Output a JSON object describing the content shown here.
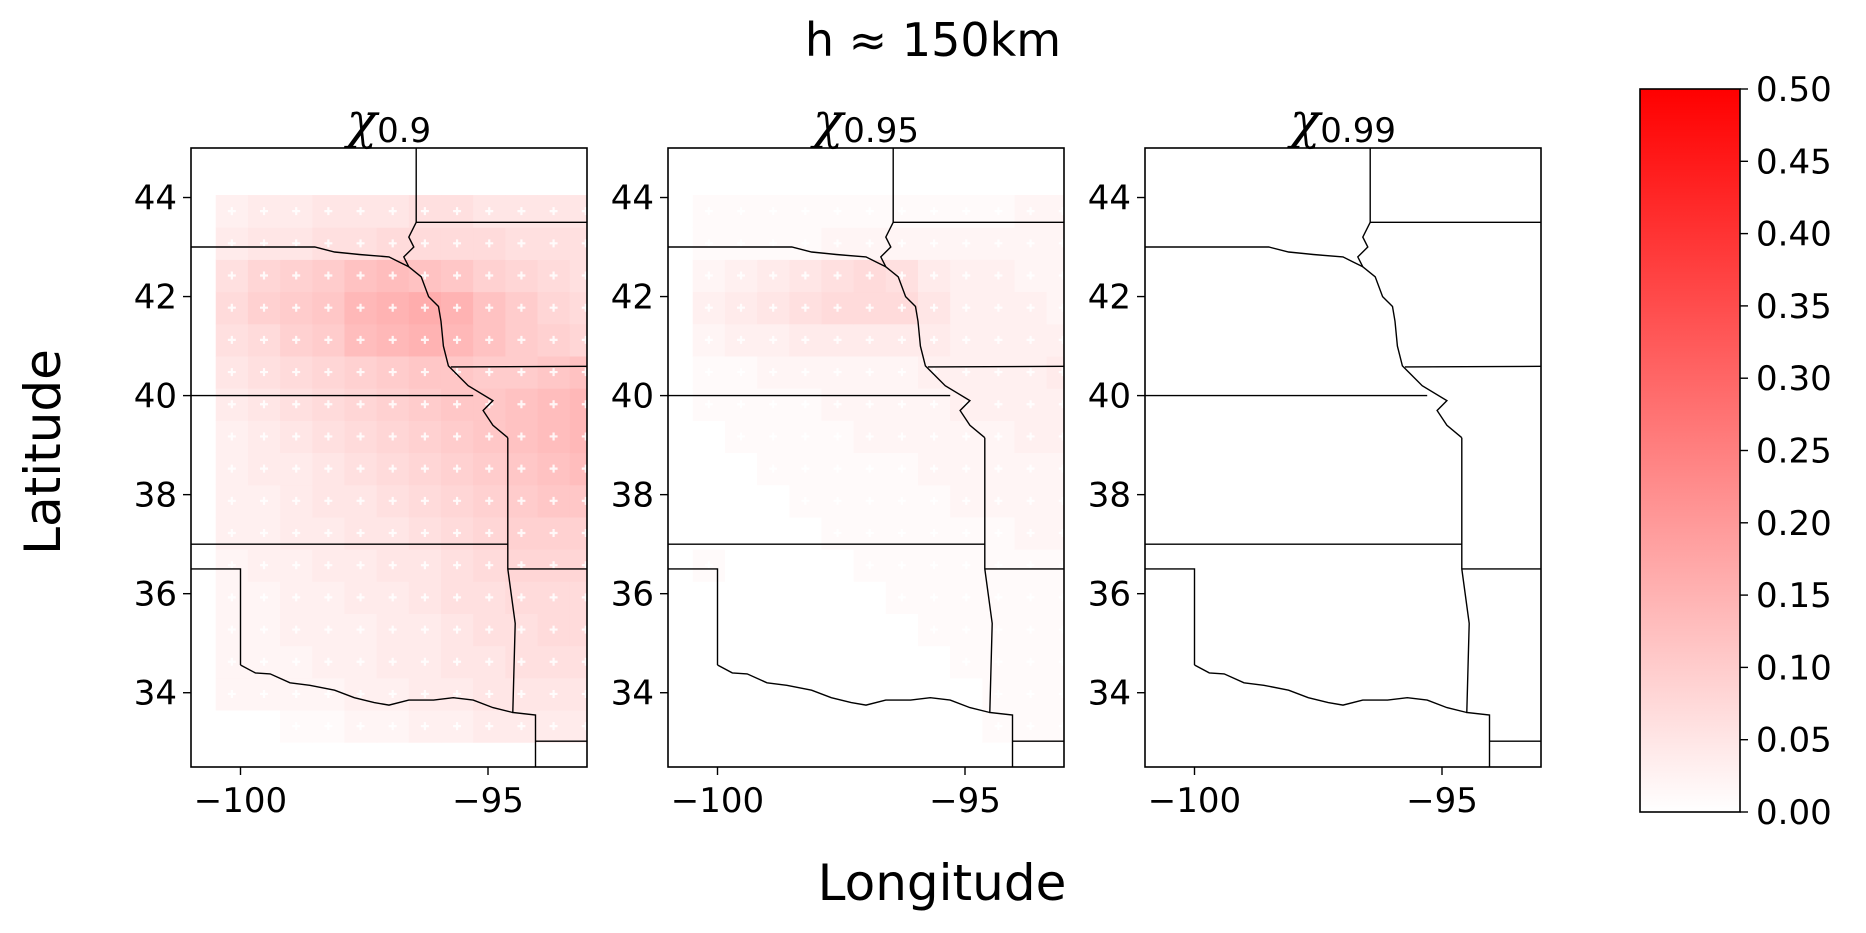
{
  "figure": {
    "suptitle": "h ≈ 150km",
    "xlabel": "Longitude",
    "ylabel": "Latitude"
  },
  "chart_data": {
    "type": "heatmap",
    "x_range": [
      -101,
      -93
    ],
    "y_range": [
      32.5,
      45
    ],
    "x_ticks": [
      -100,
      -95
    ],
    "x_tick_labels": [
      "−100",
      "−95"
    ],
    "y_ticks": [
      34,
      36,
      38,
      40,
      42,
      44
    ],
    "y_tick_labels": [
      "34",
      "36",
      "38",
      "40",
      "42",
      "44"
    ],
    "colorbar": {
      "range": [
        0,
        0.5
      ],
      "ticks": [
        "0.00",
        "0.05",
        "0.10",
        "0.15",
        "0.20",
        "0.25",
        "0.30",
        "0.35",
        "0.40",
        "0.45",
        "0.50"
      ],
      "low_color": "#ffffff",
      "high_color": "#ff0000"
    },
    "grid": {
      "lon_start": -100.5,
      "lat_start": 33.0,
      "step": 0.65,
      "ncols": 14,
      "nrows": 17
    },
    "panels": [
      {
        "title_symbol": "χ",
        "title_subscript": "0.9",
        "markers": true,
        "values": [
          [
            0.03,
            0.04,
            0.04,
            0.05,
            0.05,
            0.05,
            0.06,
            0.06,
            0.05,
            0.05,
            0.05,
            0.05,
            0.05,
            0.05
          ],
          [
            0.04,
            0.05,
            0.05,
            0.06,
            0.06,
            0.07,
            0.07,
            0.07,
            0.07,
            0.06,
            0.06,
            0.06,
            0.06,
            0.06
          ],
          [
            0.06,
            0.08,
            0.09,
            0.1,
            0.12,
            0.13,
            0.12,
            0.11,
            0.09,
            0.08,
            0.07,
            0.06,
            0.06,
            0.06
          ],
          [
            0.07,
            0.09,
            0.1,
            0.11,
            0.14,
            0.15,
            0.16,
            0.15,
            0.12,
            0.1,
            0.08,
            0.07,
            0.06,
            0.06
          ],
          [
            0.06,
            0.07,
            0.09,
            0.1,
            0.13,
            0.14,
            0.15,
            0.14,
            0.12,
            0.1,
            0.09,
            0.08,
            0.07,
            0.06
          ],
          [
            0.05,
            0.06,
            0.07,
            0.08,
            0.09,
            0.1,
            0.11,
            0.11,
            0.1,
            0.1,
            0.11,
            0.12,
            0.09,
            0.07
          ],
          [
            0.04,
            0.05,
            0.06,
            0.07,
            0.08,
            0.09,
            0.1,
            0.11,
            0.11,
            0.12,
            0.13,
            0.14,
            0.1,
            0.07
          ],
          [
            0.03,
            0.04,
            0.05,
            0.06,
            0.07,
            0.08,
            0.09,
            0.1,
            0.11,
            0.12,
            0.13,
            0.14,
            0.1,
            0.07
          ],
          [
            0.03,
            0.04,
            0.04,
            0.05,
            0.06,
            0.07,
            0.08,
            0.09,
            0.1,
            0.11,
            0.12,
            0.13,
            0.09,
            0.07
          ],
          [
            0.03,
            0.03,
            0.04,
            0.05,
            0.05,
            0.06,
            0.07,
            0.08,
            0.09,
            0.1,
            0.11,
            0.11,
            0.08,
            0.07
          ],
          [
            0.03,
            0.03,
            0.04,
            0.04,
            0.05,
            0.05,
            0.06,
            0.07,
            0.08,
            0.09,
            0.09,
            0.09,
            0.08,
            0.07
          ],
          [
            0.02,
            0.03,
            0.03,
            0.04,
            0.04,
            0.05,
            0.05,
            0.06,
            0.07,
            0.08,
            0.08,
            0.08,
            0.07,
            0.07
          ],
          [
            0.02,
            0.02,
            0.03,
            0.03,
            0.04,
            0.04,
            0.05,
            0.06,
            0.06,
            0.07,
            0.07,
            0.07,
            0.07,
            0.06
          ],
          [
            0.02,
            0.02,
            0.03,
            0.03,
            0.03,
            0.04,
            0.04,
            0.05,
            0.06,
            0.06,
            0.07,
            0.07,
            0.06,
            0.06
          ],
          [
            0.02,
            0.02,
            0.02,
            0.03,
            0.03,
            0.04,
            0.04,
            0.05,
            0.05,
            0.06,
            0.06,
            0.06,
            0.06,
            0.06
          ],
          [
            0.02,
            0.02,
            0.02,
            0.02,
            0.03,
            0.03,
            0.04,
            0.04,
            0.05,
            0.05,
            0.05,
            0.05,
            0.05,
            0.05
          ],
          [
            null,
            null,
            0.01,
            0.01,
            0.02,
            0.02,
            0.03,
            0.03,
            0.04,
            0.04,
            0.04,
            0.04,
            0.04,
            0.04
          ]
        ]
      },
      {
        "title_symbol": "χ",
        "title_subscript": "0.95",
        "markers": true,
        "values": [
          [
            0.01,
            0.01,
            0.01,
            0.01,
            0.01,
            0.01,
            0.01,
            0.01,
            0.01,
            0.01,
            0.02,
            0.02,
            0.02,
            0.02
          ],
          [
            0.01,
            0.01,
            0.01,
            0.01,
            0.02,
            0.02,
            0.02,
            0.02,
            0.02,
            0.02,
            0.02,
            0.02,
            0.02,
            0.02
          ],
          [
            0.02,
            0.03,
            0.04,
            0.05,
            0.06,
            0.07,
            0.06,
            0.04,
            0.03,
            0.03,
            0.02,
            0.02,
            0.02,
            0.02
          ],
          [
            0.03,
            0.04,
            0.05,
            0.06,
            0.07,
            0.07,
            0.07,
            0.05,
            0.03,
            0.03,
            0.03,
            0.02,
            0.02,
            0.02
          ],
          [
            0.02,
            0.03,
            0.03,
            0.04,
            0.04,
            0.04,
            0.04,
            0.04,
            0.03,
            0.03,
            0.03,
            0.03,
            0.02,
            0.02
          ],
          [
            0.01,
            0.01,
            0.02,
            0.02,
            0.02,
            0.02,
            0.02,
            0.03,
            0.03,
            0.03,
            0.03,
            0.04,
            0.02,
            0.02
          ],
          [
            0.01,
            0.01,
            0.01,
            0.01,
            0.02,
            0.02,
            0.02,
            0.02,
            0.03,
            0.03,
            0.03,
            0.03,
            0.02,
            0.02
          ],
          [
            0.0,
            0.01,
            0.01,
            0.01,
            0.01,
            0.02,
            0.02,
            0.02,
            0.02,
            0.02,
            0.03,
            0.03,
            0.02,
            0.02
          ],
          [
            0.0,
            0.0,
            0.01,
            0.01,
            0.01,
            0.01,
            0.01,
            0.02,
            0.02,
            0.02,
            0.02,
            0.02,
            0.02,
            0.02
          ],
          [
            0.0,
            0.0,
            0.0,
            0.01,
            0.01,
            0.01,
            0.01,
            0.01,
            0.02,
            0.02,
            0.02,
            0.02,
            0.02,
            0.02
          ],
          [
            0.0,
            0.0,
            0.0,
            0.0,
            0.01,
            0.01,
            0.01,
            0.01,
            0.01,
            0.01,
            0.02,
            0.02,
            0.01,
            0.01
          ],
          [
            0.01,
            0.0,
            0.0,
            0.0,
            0.0,
            0.01,
            0.01,
            0.01,
            0.01,
            0.01,
            0.01,
            0.01,
            0.01,
            0.01
          ],
          [
            0.0,
            0.0,
            0.0,
            0.0,
            0.0,
            0.0,
            0.01,
            0.01,
            0.01,
            0.01,
            0.01,
            0.01,
            0.01,
            0.01
          ],
          [
            0.0,
            0.0,
            0.0,
            0.0,
            0.0,
            0.0,
            0.0,
            0.01,
            0.01,
            0.01,
            0.01,
            0.01,
            0.01,
            0.01
          ],
          [
            0.0,
            0.0,
            0.0,
            0.0,
            0.0,
            0.0,
            0.0,
            0.0,
            0.01,
            0.01,
            0.01,
            0.01,
            0.01,
            0.01
          ],
          [
            0.0,
            0.0,
            0.0,
            0.0,
            0.0,
            0.0,
            0.0,
            0.0,
            0.0,
            0.01,
            0.01,
            0.01,
            0.01,
            0.01
          ],
          [
            null,
            null,
            0.0,
            0.0,
            0.0,
            0.0,
            0.0,
            0.0,
            0.0,
            0.01,
            0.01,
            0.01,
            0.01,
            0.01
          ]
        ]
      },
      {
        "title_symbol": "χ",
        "title_subscript": "0.99",
        "markers": false,
        "values": "all 0.00"
      }
    ]
  }
}
